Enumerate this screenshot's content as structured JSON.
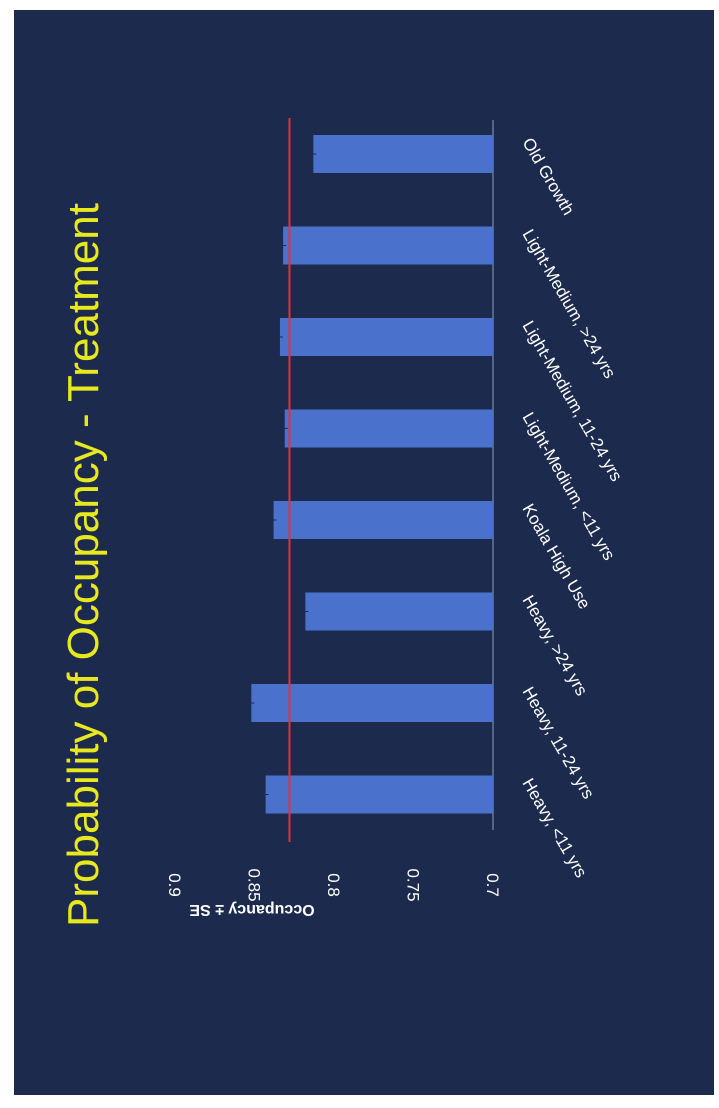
{
  "chart_data": {
    "type": "bar",
    "title": "Probability of Occupancy - Treatment",
    "ylabel": "Occupancy ± SE",
    "xlabel": "",
    "ylim": [
      0.7,
      0.9
    ],
    "yticks": [
      "0.7",
      "0.75",
      "0.8",
      "0.85",
      "0.9"
    ],
    "categories": [
      "Heavy, <11 yrs",
      "Heavy, 11-24 yrs",
      "Heavy, >24 yrs",
      "Koala High Use",
      "Light-Medium, <11 yrs",
      "Light-Medium, 11-24 yrs",
      "Light-Medium, >24 yrs",
      "Old Growth"
    ],
    "values": [
      0.843,
      0.852,
      0.818,
      0.838,
      0.831,
      0.834,
      0.832,
      0.813
    ],
    "reference_line": 0.828,
    "orientation": "rotated page (bars drawn horizontally)",
    "colors": {
      "bar": "#4a72cc",
      "reference_line": "#e0343a",
      "background": "#1b2a4d",
      "title": "#e8e81e",
      "text": "#ffffff"
    }
  }
}
